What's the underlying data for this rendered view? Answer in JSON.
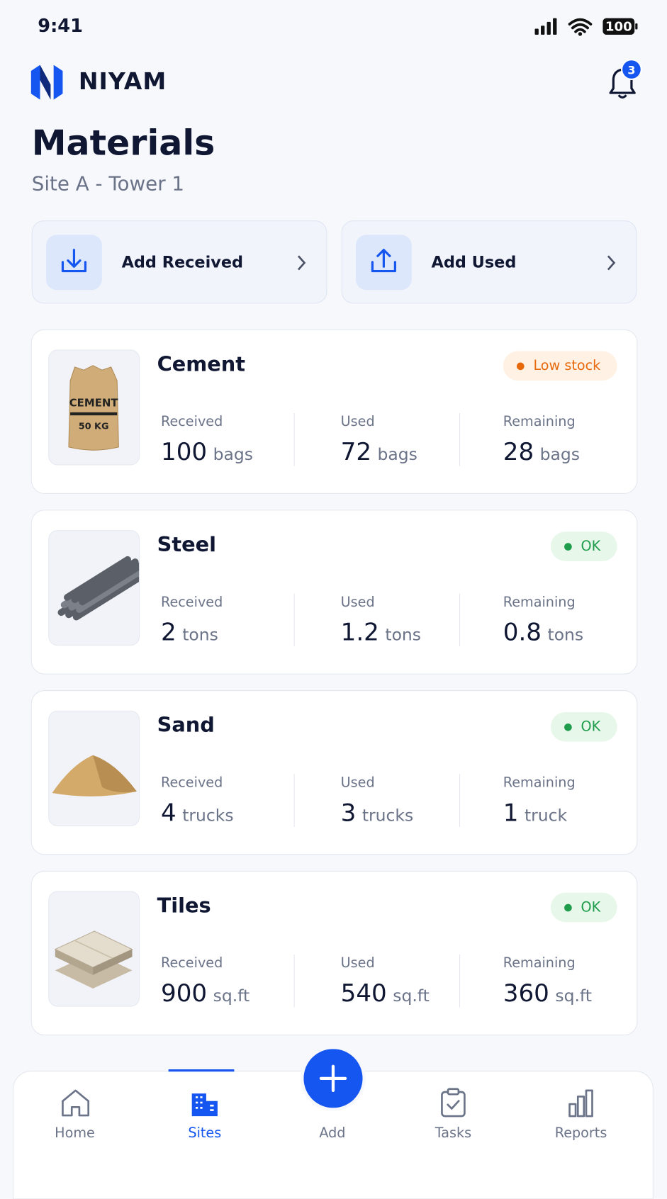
{
  "status_bar": {
    "time": "9:41",
    "battery": "100"
  },
  "header": {
    "brand": "NIYAM",
    "notifications": 3,
    "title": "Materials",
    "subtitle": "Site A - Tower 1"
  },
  "actions": [
    {
      "label": "Add Received"
    },
    {
      "label": "Add Used"
    }
  ],
  "materials": [
    {
      "name": "Cement",
      "status": "Low stock",
      "status_color": "#e8690c",
      "status_bg": "#fff1e3",
      "image_labels": [
        "CEMENT",
        "50 KG"
      ],
      "stats": [
        {
          "label": "Received",
          "value": 100,
          "unit": "bags"
        },
        {
          "label": "Used",
          "value": 72,
          "unit": "bags"
        },
        {
          "label": "Remaining",
          "value": 28,
          "unit": "bags"
        }
      ]
    },
    {
      "name": "Steel",
      "status": "OK",
      "status_color": "#1f9d4c",
      "status_bg": "#e7f7ea",
      "stats": [
        {
          "label": "Received",
          "value": 2,
          "unit": "tons"
        },
        {
          "label": "Used",
          "value": 1.2,
          "unit": "tons"
        },
        {
          "label": "Remaining",
          "value": 0.8,
          "unit": "tons"
        }
      ]
    },
    {
      "name": "Sand",
      "status": "OK",
      "status_color": "#1f9d4c",
      "status_bg": "#e7f7ea",
      "stats": [
        {
          "label": "Received",
          "value": 4,
          "unit": "trucks"
        },
        {
          "label": "Used",
          "value": 3,
          "unit": "trucks"
        },
        {
          "label": "Remaining",
          "value": 1,
          "unit": "truck"
        }
      ]
    },
    {
      "name": "Tiles",
      "status": "OK",
      "status_color": "#1f9d4c",
      "status_bg": "#e7f7ea",
      "stats": [
        {
          "label": "Received",
          "value": 900,
          "unit": "sq.ft"
        },
        {
          "label": "Used",
          "value": 540,
          "unit": "sq.ft"
        },
        {
          "label": "Remaining",
          "value": 360,
          "unit": "sq.ft"
        }
      ]
    }
  ],
  "nav": {
    "active": 1,
    "items": [
      {
        "label": "Home"
      },
      {
        "label": "Sites"
      },
      {
        "label": "Add"
      },
      {
        "label": "Tasks"
      },
      {
        "label": "Reports"
      }
    ]
  }
}
